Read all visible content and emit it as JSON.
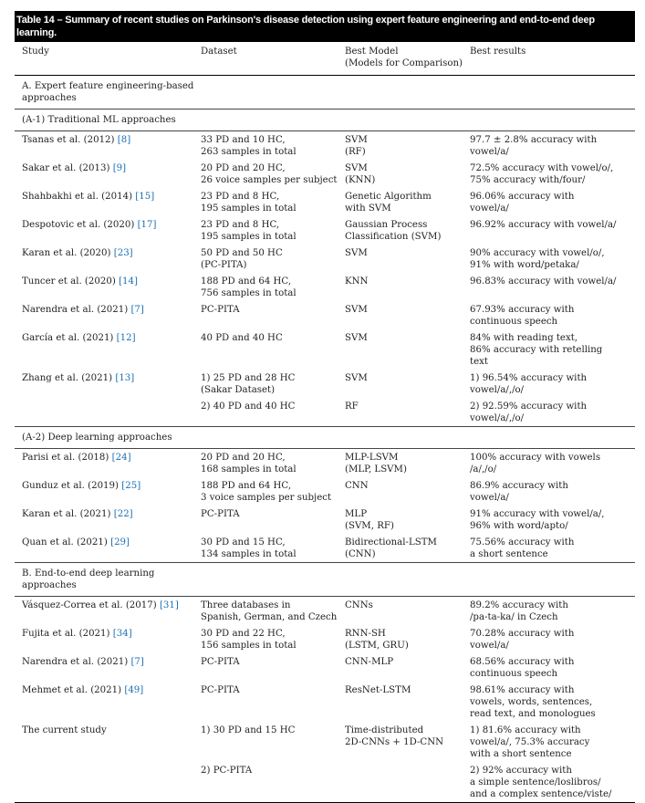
{
  "caption": "Table 14 – Summary of recent studies on Parkinson's disease detection using expert feature engineering and end-to-end deep learning.",
  "columns": [
    [
      "Study"
    ],
    [
      "Dataset"
    ],
    [
      "Best Model",
      "(Models for Comparison)"
    ],
    [
      "Best results"
    ]
  ],
  "body": [
    {
      "heading": "A. Expert feature engineering-based approaches"
    },
    {
      "heading": "(A-1) Traditional ML approaches"
    },
    {
      "study": "Tsanas et al. (2012)",
      "ref": "[8]",
      "dataset": [
        "33 PD and 10 HC,",
        "263 samples in total"
      ],
      "model": [
        "SVM",
        "(RF)"
      ],
      "results": [
        "97.7 ± 2.8% accuracy with",
        "vowel/a/"
      ]
    },
    {
      "study": "Sakar et al. (2013)",
      "ref": "[9]",
      "dataset": [
        "20 PD and 20 HC,",
        "26 voice samples per subject"
      ],
      "model": [
        "SVM",
        "(KNN)"
      ],
      "results": [
        "72.5% accuracy with vowel/o/,",
        "75% accuracy with/four/"
      ]
    },
    {
      "study": "Shahbakhi et al. (2014)",
      "ref": "[15]",
      "dataset": [
        "23 PD and 8 HC,",
        "195 samples in total"
      ],
      "model": [
        "Genetic Algorithm",
        "with SVM"
      ],
      "results": [
        "96.06% accuracy with",
        "vowel/a/"
      ]
    },
    {
      "study": "Despotovic et al. (2020)",
      "ref": "[17]",
      "dataset": [
        "23 PD and 8 HC,",
        "195 samples in total"
      ],
      "model": [
        "Gaussian Process",
        "Classification (SVM)"
      ],
      "results": [
        "96.92% accuracy with vowel/a/"
      ]
    },
    {
      "study": "Karan et al. (2020)",
      "ref": "[23]",
      "dataset": [
        "50 PD and 50 HC",
        "(PC-PITA)"
      ],
      "model": [
        "SVM"
      ],
      "results": [
        "90% accuracy with vowel/o/,",
        "91% with word/petaka/"
      ]
    },
    {
      "study": "Tuncer et al. (2020)",
      "ref": "[14]",
      "dataset": [
        "188 PD and 64 HC,",
        "756 samples in total"
      ],
      "model": [
        "KNN"
      ],
      "results": [
        "96.83% accuracy with vowel/a/"
      ]
    },
    {
      "study": "Narendra et al. (2021)",
      "ref": "[7]",
      "dataset": [
        "PC-PITA"
      ],
      "model": [
        "SVM"
      ],
      "results": [
        "67.93% accuracy with",
        "continuous speech"
      ]
    },
    {
      "study": "García et al. (2021)",
      "ref": "[12]",
      "dataset": [
        "40 PD and 40 HC"
      ],
      "model": [
        "SVM"
      ],
      "results": [
        "84% with reading text,",
        "86% accuracy with retelling",
        "text"
      ]
    },
    {
      "study": "Zhang et al. (2021)",
      "ref": "[13]",
      "dataset": [
        "1) 25 PD and 28 HC",
        "(Sakar Dataset)"
      ],
      "model": [
        "SVM"
      ],
      "results": [
        "1) 96.54% accuracy with",
        "vowel/a/,/o/"
      ]
    },
    {
      "dataset": [
        "2) 40 PD and 40 HC"
      ],
      "model": [
        "RF"
      ],
      "results": [
        "2) 92.59% accuracy with",
        "vowel/a/,/o/"
      ]
    },
    {
      "heading": "(A-2) Deep learning approaches"
    },
    {
      "study": "Parisi et al. (2018)",
      "ref": "[24]",
      "dataset": [
        "20 PD and 20 HC,",
        "168 samples in total"
      ],
      "model": [
        "MLP-LSVM",
        "(MLP, LSVM)"
      ],
      "results": [
        "100% accuracy with vowels",
        "/a/,/o/"
      ]
    },
    {
      "study": "Gunduz et al. (2019)",
      "ref": "[25]",
      "dataset": [
        "188 PD and 64 HC,",
        "3 voice samples per subject"
      ],
      "model": [
        "CNN"
      ],
      "results": [
        "86.9% accuracy with",
        "vowel/a/"
      ]
    },
    {
      "study": "Karan et al. (2021)",
      "ref": "[22]",
      "dataset": [
        "PC-PITA"
      ],
      "model": [
        "MLP",
        "(SVM, RF)"
      ],
      "results": [
        "91% accuracy with vowel/a/,",
        "96% with word/apto/"
      ]
    },
    {
      "study": "Quan et al. (2021)",
      "ref": "[29]",
      "dataset": [
        "30 PD and 15 HC,",
        "134 samples in total"
      ],
      "model": [
        "Bidirectional-LSTM",
        "(CNN)"
      ],
      "results": [
        "75.56% accuracy with",
        "a short sentence"
      ]
    },
    {
      "heading": "B. End-to-end deep learning approaches"
    },
    {
      "study": "Vásquez-Correa et al. (2017)",
      "ref": "[31]",
      "dataset": [
        "Three databases in",
        "Spanish, German, and Czech"
      ],
      "model": [
        "CNNs"
      ],
      "results": [
        "89.2% accuracy with",
        "/pa-ta-ka/ in Czech"
      ]
    },
    {
      "study": "Fujita et al. (2021)",
      "ref": "[34]",
      "dataset": [
        "30 PD and 22 HC,",
        "156 samples in total"
      ],
      "model": [
        "RNN-SH",
        "(LSTM, GRU)"
      ],
      "results": [
        "70.28% accuracy with",
        "vowel/a/"
      ]
    },
    {
      "study": "Narendra et al. (2021)",
      "ref": "[7]",
      "dataset": [
        "PC-PITA"
      ],
      "model": [
        "CNN-MLP"
      ],
      "results": [
        "68.56% accuracy with",
        "continuous speech"
      ]
    },
    {
      "study": "Mehmet et al. (2021)",
      "ref": "[49]",
      "dataset": [
        "PC-PITA"
      ],
      "model": [
        "ResNet-LSTM"
      ],
      "results": [
        "98.61% accuracy with",
        "vowels, words, sentences,",
        "read text, and monologues"
      ]
    },
    {
      "study": "The current study",
      "dataset": [
        "1) 30 PD and 15 HC"
      ],
      "model": [
        "Time-distributed",
        "2D-CNNs + 1D-CNN"
      ],
      "results": [
        "1) 81.6% accuracy with",
        "vowel/a/, 75.3% accuracy",
        "with a short sentence"
      ]
    },
    {
      "dataset": [
        "2) PC-PITA"
      ],
      "model": [],
      "results": [
        "2) 92% accuracy with",
        "a simple sentence/loslibros/",
        "and a complex sentence/viste/"
      ]
    }
  ]
}
